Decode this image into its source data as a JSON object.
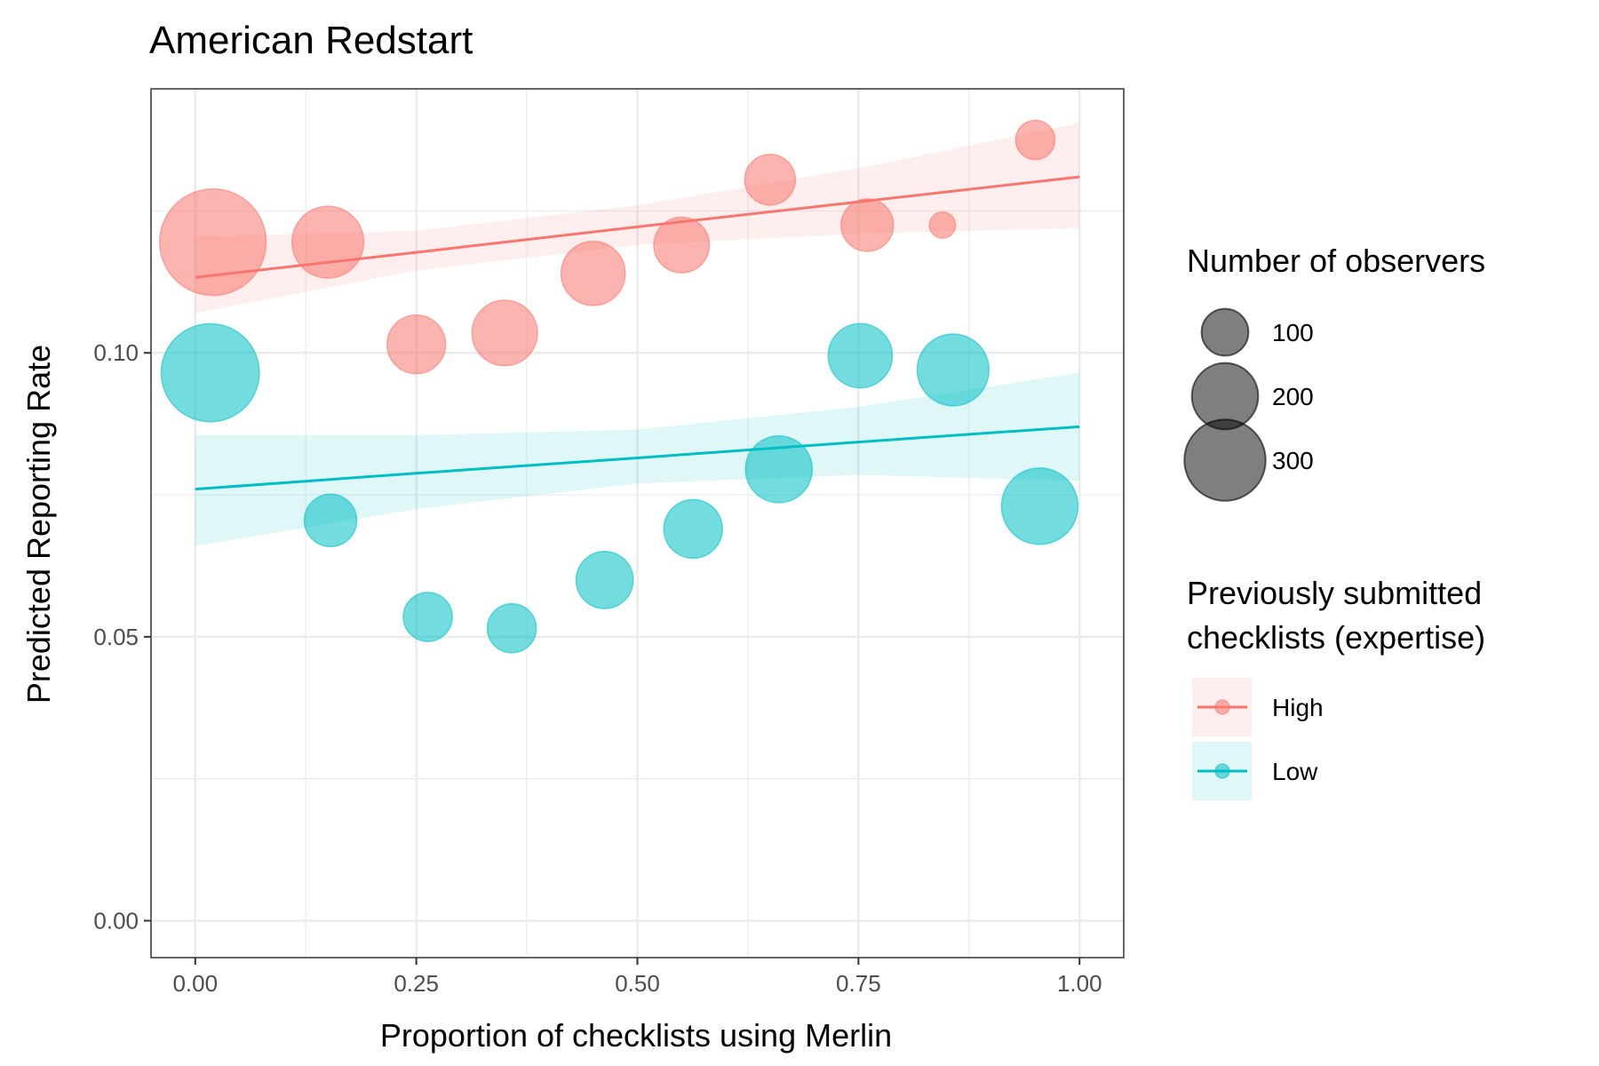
{
  "chart_data": {
    "type": "scatter",
    "title": "American Redstart",
    "xlabel": "Proportion of checklists using Merlin",
    "ylabel": "Predicted Reporting Rate",
    "xlim": [
      -0.05,
      1.05
    ],
    "ylim": [
      -0.0065,
      0.1465
    ],
    "x_ticks": [
      0.0,
      0.25,
      0.5,
      0.75,
      1.0
    ],
    "x_tick_labels": [
      "0.00",
      "0.25",
      "0.50",
      "0.75",
      "1.00"
    ],
    "y_ticks": [
      0.0,
      0.05,
      0.1
    ],
    "y_tick_labels": [
      "0.00",
      "0.05",
      "0.10"
    ],
    "grid": true,
    "legend_position": "right",
    "size_legend": {
      "title": "Number of observers",
      "entries": [
        {
          "label": "100",
          "value": 100
        },
        {
          "label": "200",
          "value": 200
        },
        {
          "label": "300",
          "value": 300
        }
      ]
    },
    "color_legend": {
      "title_lines": [
        "Previously submitted",
        "checklists (expertise)"
      ],
      "entries": [
        {
          "label": "High",
          "color": "#F8766D"
        },
        {
          "label": "Low",
          "color": "#00BFC4"
        }
      ]
    },
    "series": [
      {
        "name": "High",
        "color": "#F8766D",
        "points": [
          {
            "x": 0.02,
            "y": 0.1195,
            "n": 330
          },
          {
            "x": 0.15,
            "y": 0.1195,
            "n": 150
          },
          {
            "x": 0.25,
            "y": 0.1015,
            "n": 100
          },
          {
            "x": 0.35,
            "y": 0.1035,
            "n": 125
          },
          {
            "x": 0.45,
            "y": 0.114,
            "n": 120
          },
          {
            "x": 0.55,
            "y": 0.119,
            "n": 90
          },
          {
            "x": 0.65,
            "y": 0.1305,
            "n": 75
          },
          {
            "x": 0.76,
            "y": 0.1225,
            "n": 80
          },
          {
            "x": 0.845,
            "y": 0.1225,
            "n": 20
          },
          {
            "x": 0.95,
            "y": 0.1375,
            "n": 45
          }
        ],
        "trend": {
          "x": [
            0.0,
            0.25,
            0.5,
            0.75,
            1.0
          ],
          "y": [
            0.1133,
            0.1177,
            0.1222,
            0.1266,
            0.131
          ]
        },
        "ci_lower": {
          "x": [
            0.0,
            0.25,
            0.5,
            0.75,
            1.0
          ],
          "y": [
            0.107,
            0.1145,
            0.119,
            0.121,
            0.122
          ]
        },
        "ci_upper": {
          "x": [
            0.0,
            0.25,
            0.5,
            0.75,
            1.0
          ],
          "y": [
            0.1205,
            0.1215,
            0.126,
            0.1325,
            0.1405
          ]
        }
      },
      {
        "name": "Low",
        "color": "#00BFC4",
        "points": [
          {
            "x": 0.017,
            "y": 0.0965,
            "n": 280
          },
          {
            "x": 0.153,
            "y": 0.0705,
            "n": 80
          },
          {
            "x": 0.263,
            "y": 0.0535,
            "n": 70
          },
          {
            "x": 0.358,
            "y": 0.0515,
            "n": 70
          },
          {
            "x": 0.463,
            "y": 0.06,
            "n": 95
          },
          {
            "x": 0.563,
            "y": 0.069,
            "n": 100
          },
          {
            "x": 0.66,
            "y": 0.0795,
            "n": 130
          },
          {
            "x": 0.752,
            "y": 0.0995,
            "n": 120
          },
          {
            "x": 0.857,
            "y": 0.097,
            "n": 150
          },
          {
            "x": 0.955,
            "y": 0.073,
            "n": 170
          }
        ],
        "trend": {
          "x": [
            0.0,
            0.25,
            0.5,
            0.75,
            1.0
          ],
          "y": [
            0.076,
            0.0788,
            0.0815,
            0.0843,
            0.087
          ]
        },
        "ci_lower": {
          "x": [
            0.0,
            0.25,
            0.5,
            0.75,
            1.0
          ],
          "y": [
            0.066,
            0.0725,
            0.077,
            0.0785,
            0.0775
          ]
        },
        "ci_upper": {
          "x": [
            0.0,
            0.25,
            0.5,
            0.75,
            1.0
          ],
          "y": [
            0.0855,
            0.0855,
            0.0865,
            0.0905,
            0.0965
          ]
        }
      }
    ]
  }
}
